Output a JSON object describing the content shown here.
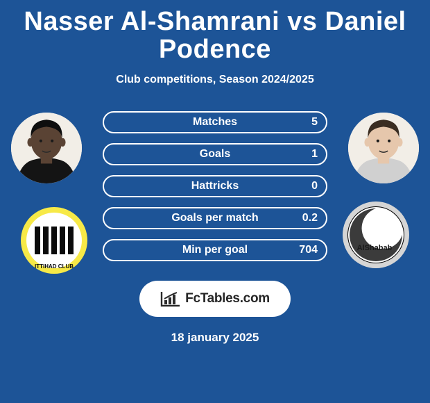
{
  "page": {
    "title": "Nasser Al-Shamrani vs Daniel Podence",
    "subtitle": "Club competitions, Season 2024/2025",
    "date": "18 january 2025",
    "background_color": "#1d5497",
    "text_color": "#ffffff"
  },
  "player_left": {
    "name": "Nasser Al-Shamrani",
    "skin_color": "#5a4334",
    "hair_color": "#0e0e0e",
    "shirt_color": "#141414"
  },
  "player_right": {
    "name": "Daniel Podence",
    "skin_color": "#e6c7ac",
    "hair_color": "#3a2d22",
    "shirt_color": "#d0d0d0"
  },
  "club_left": {
    "name": "Al-Ittihad",
    "outline": "#f7e947",
    "inner": "#ffffff",
    "stripe": "#0b0b0b",
    "text": "ITTIHAD CLUB"
  },
  "club_right": {
    "name": "Al-Shabab",
    "outline": "#d5d5d5",
    "inner": "#ffffff",
    "accent": "#3b3b3b",
    "text": "AlShabab"
  },
  "stats": {
    "left_color": "#1d5497",
    "right_color": "#1d5497",
    "label_fontsize": 16,
    "rows": [
      {
        "label": "Matches",
        "left": "",
        "right": "5",
        "left_pct": 0,
        "right_pct": 0
      },
      {
        "label": "Goals",
        "left": "",
        "right": "1",
        "left_pct": 0,
        "right_pct": 0
      },
      {
        "label": "Hattricks",
        "left": "",
        "right": "0",
        "left_pct": 0,
        "right_pct": 0
      },
      {
        "label": "Goals per match",
        "left": "",
        "right": "0.2",
        "left_pct": 0,
        "right_pct": 0
      },
      {
        "label": "Min per goal",
        "left": "",
        "right": "704",
        "left_pct": 0,
        "right_pct": 0
      }
    ]
  },
  "badge": {
    "text": "FcTables.com",
    "icon_color": "#2b2b2b",
    "background": "#ffffff"
  }
}
